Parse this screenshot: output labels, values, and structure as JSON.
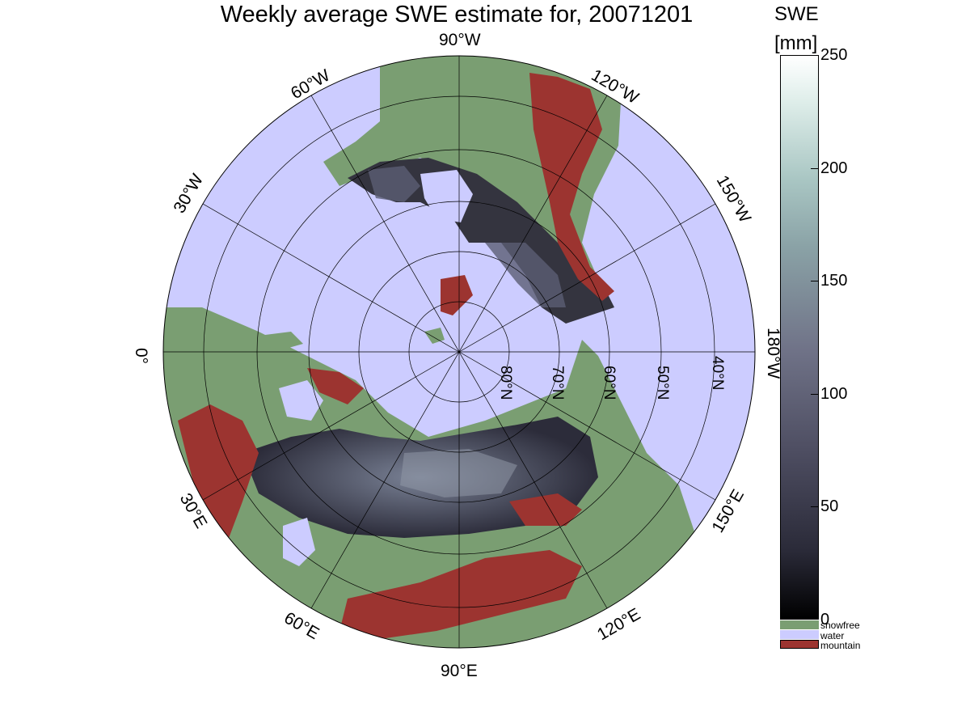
{
  "title": "Weekly average SWE estimate for, 20071201",
  "colorbar": {
    "title_line1": "SWE",
    "title_line2": "[mm]",
    "ticks": [
      "0",
      "50",
      "100",
      "150",
      "200",
      "250"
    ],
    "range": [
      0,
      250
    ]
  },
  "legend": [
    {
      "label": "snowfree",
      "color": "#7a9e72"
    },
    {
      "label": "water",
      "color": "#ccccff"
    },
    {
      "label": "mountain",
      "color": "#9c3430"
    }
  ],
  "meridian_labels": {
    "m90w": "90°W",
    "m120w": "120°W",
    "m150w": "150°W",
    "m180w": "180°W",
    "m150e": "150°E",
    "m120e": "120°E",
    "m90e": "90°E",
    "m60e": "60°E",
    "m30e": "30°E",
    "m0": "0°",
    "m30w": "30°W",
    "m60w": "60°W"
  },
  "parallel_labels": {
    "p80": "80°N",
    "p70": "70°N",
    "p60": "60°N",
    "p50": "50°N",
    "p40": "40°N"
  },
  "colors": {
    "water": "#ccccff",
    "snowfree": "#7a9e72",
    "mountain": "#9c3430",
    "snow_dark": "#2c2c3a",
    "snow_mid": "#565a70"
  }
}
